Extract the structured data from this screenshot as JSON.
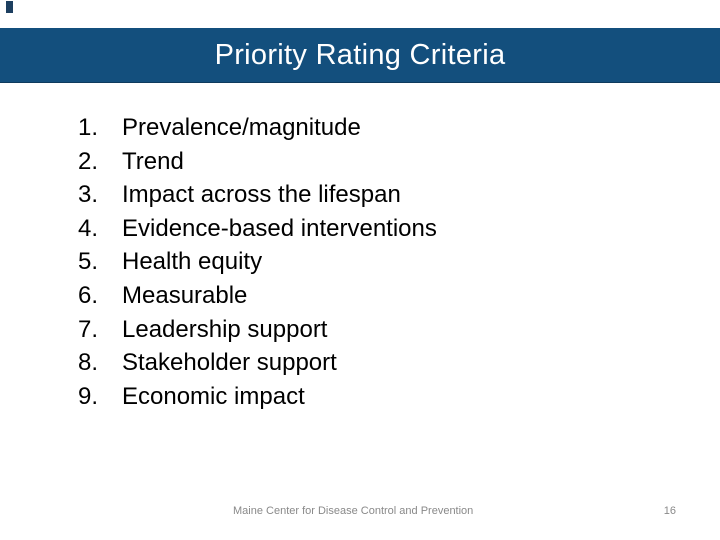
{
  "slide": {
    "title": "Priority Rating Criteria",
    "criteria": [
      {
        "number": "1.",
        "text": "Prevalence/magnitude"
      },
      {
        "number": "2.",
        "text": "Trend"
      },
      {
        "number": "3.",
        "text": "Impact across the lifespan"
      },
      {
        "number": "4.",
        "text": "Evidence-based interventions"
      },
      {
        "number": "5.",
        "text": "Health equity"
      },
      {
        "number": "6.",
        "text": "Measurable"
      },
      {
        "number": "7.",
        "text": "Leadership support"
      },
      {
        "number": "8.",
        "text": "Stakeholder support"
      },
      {
        "number": "9.",
        "text": "Economic impact"
      }
    ],
    "footer": {
      "text": "Maine Center for Disease Control and Prevention",
      "page_number": "16"
    }
  },
  "colors": {
    "title_bar_bg": "#134f7d",
    "title_bar_edge": "#0e3a5d",
    "title_text": "#ffffff",
    "body_text": "#000000",
    "footer_text": "#898989",
    "corner_mark": "#1d3f60"
  }
}
